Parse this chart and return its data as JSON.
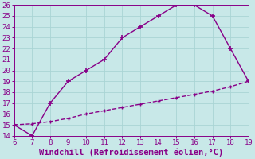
{
  "xlabel": "Windchill (Refroidissement éolien,°C)",
  "xlim": [
    6,
    19
  ],
  "ylim": [
    14,
    26
  ],
  "xticks": [
    6,
    7,
    8,
    9,
    10,
    11,
    12,
    13,
    14,
    15,
    16,
    17,
    18,
    19
  ],
  "yticks": [
    14,
    15,
    16,
    17,
    18,
    19,
    20,
    21,
    22,
    23,
    24,
    25,
    26
  ],
  "line1_x": [
    6,
    7,
    8,
    9,
    10,
    11,
    12,
    13,
    14,
    15,
    16,
    17,
    18,
    19
  ],
  "line1_y": [
    15,
    14,
    17,
    19,
    20,
    21,
    23,
    24,
    25,
    26,
    26,
    25,
    22,
    19
  ],
  "line2_x": [
    6,
    7,
    8,
    9,
    10,
    11,
    12,
    13,
    14,
    15,
    16,
    17,
    18,
    19
  ],
  "line2_y": [
    15,
    15.1,
    15.3,
    15.6,
    16.0,
    16.3,
    16.6,
    16.9,
    17.2,
    17.5,
    17.8,
    18.1,
    18.5,
    19.0
  ],
  "line_color": "#880088",
  "bg_color": "#c8e8e8",
  "grid_color": "#aad4d4",
  "tick_label_color": "#880088",
  "xlabel_color": "#880088",
  "marker1": "+",
  "marker2": "+",
  "markersize1": 4,
  "markersize2": 3,
  "linewidth": 1.0,
  "tick_fontsize": 6.5,
  "xlabel_fontsize": 7.5
}
